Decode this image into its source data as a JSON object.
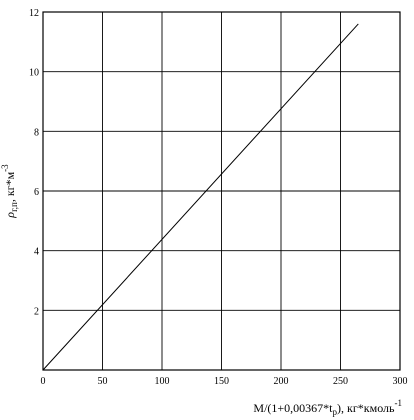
{
  "chart_data": {
    "type": "line",
    "title": "",
    "xlabel": {
      "main": "M/(1+0,00367*t",
      "sub": "р",
      "tail": "), кг*кмоль",
      "sup": "-1"
    },
    "ylabel": {
      "symbol": "ρ",
      "sub": "г,п",
      "tail": ", кг*м",
      "sup": "-3"
    },
    "xlim": [
      0,
      300
    ],
    "ylim": [
      0,
      12
    ],
    "x_ticks": [
      "0",
      "50",
      "100",
      "150",
      "200",
      "250",
      "300"
    ],
    "y_ticks": [
      "2",
      "4",
      "6",
      "8",
      "10",
      "12"
    ],
    "grid": true,
    "legend": "none",
    "series": [
      {
        "x": [
          0,
          265
        ],
        "y": [
          0,
          11.6
        ]
      }
    ]
  }
}
